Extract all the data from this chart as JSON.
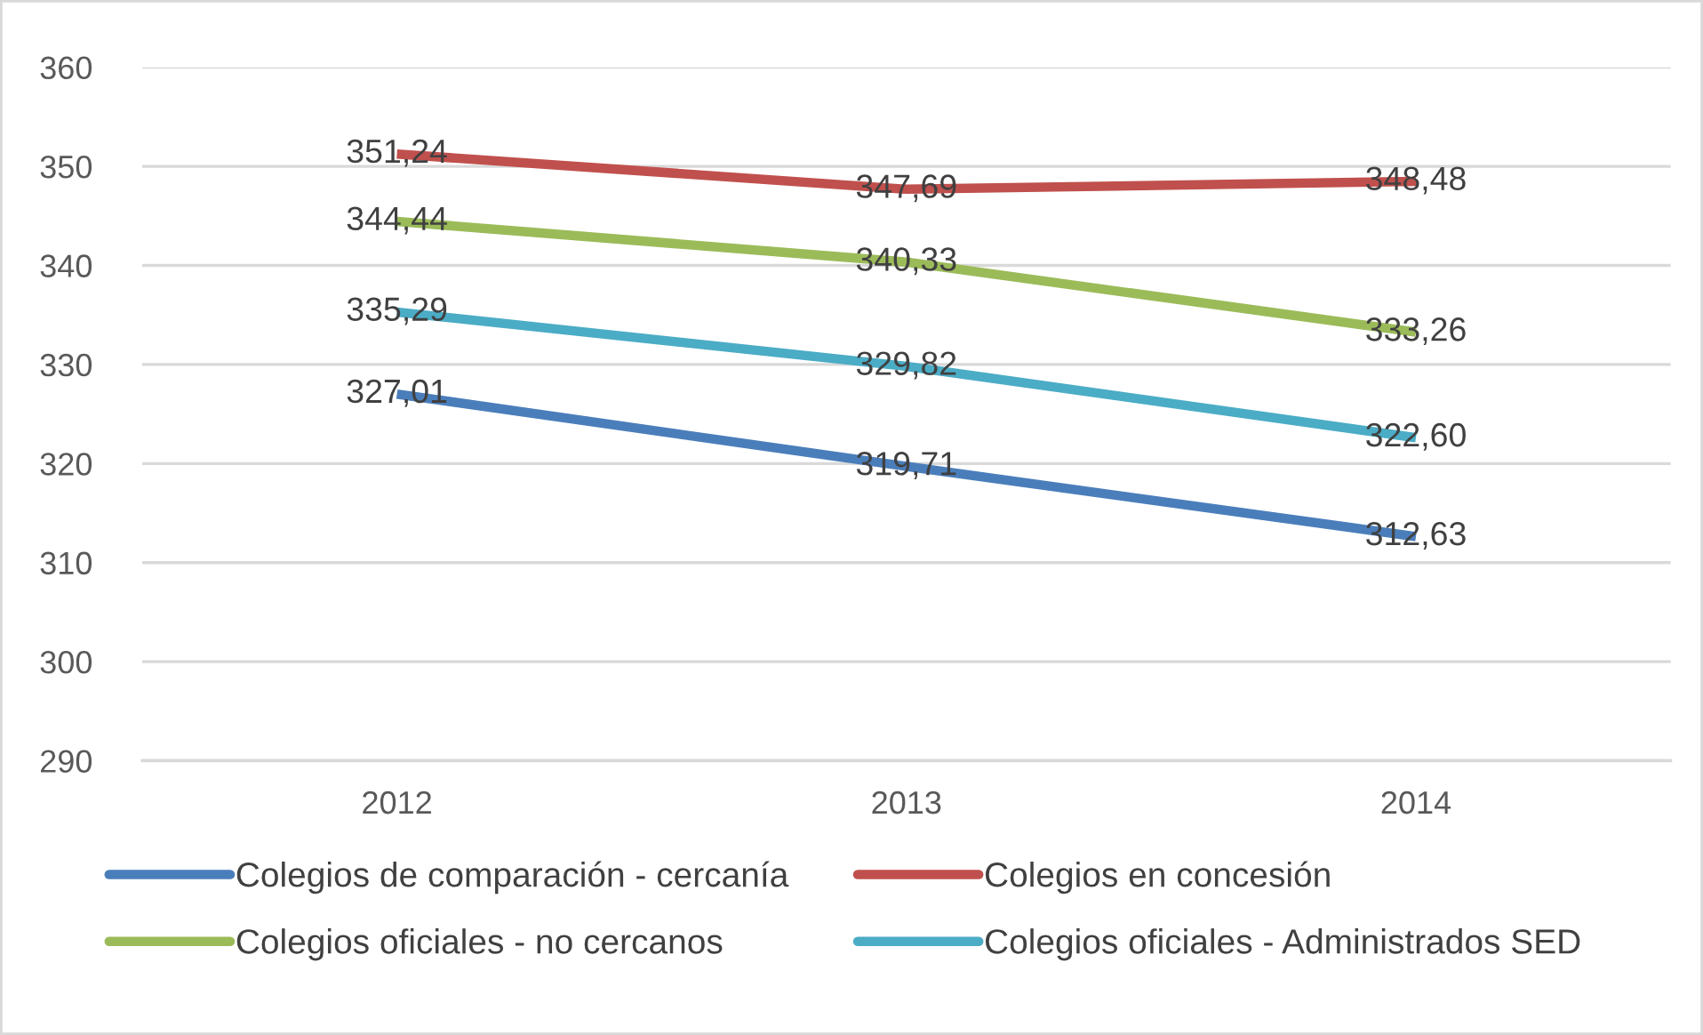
{
  "chart_data": {
    "type": "line",
    "categories": [
      "2012",
      "2013",
      "2014"
    ],
    "series": [
      {
        "name": "Colegios de comparación - cercanía",
        "color": "#4a7ebb",
        "values": [
          327.01,
          319.71,
          312.63
        ],
        "value_labels": [
          "327,01",
          "319,71",
          "312,63"
        ]
      },
      {
        "name": "Colegios en concesión",
        "color": "#c0504d",
        "values": [
          351.24,
          347.69,
          348.48
        ],
        "value_labels": [
          "351,24",
          "347,69",
          "348,48"
        ]
      },
      {
        "name": "Colegios oficiales - no cercanos",
        "color": "#9bbb59",
        "values": [
          344.44,
          340.33,
          333.26
        ],
        "value_labels": [
          "344,44",
          "340,33",
          "333,26"
        ]
      },
      {
        "name": "Colegios oficiales - Administrados SED",
        "color": "#4bacc6",
        "values": [
          335.29,
          329.82,
          322.6
        ],
        "value_labels": [
          "335,29",
          "329,82",
          "322,60"
        ]
      }
    ],
    "ylim": [
      290,
      360
    ],
    "yticks": [
      290,
      300,
      310,
      320,
      330,
      340,
      350,
      360
    ],
    "grid": "y",
    "legend": "bottom",
    "marker": "none",
    "line_style": "solid"
  }
}
